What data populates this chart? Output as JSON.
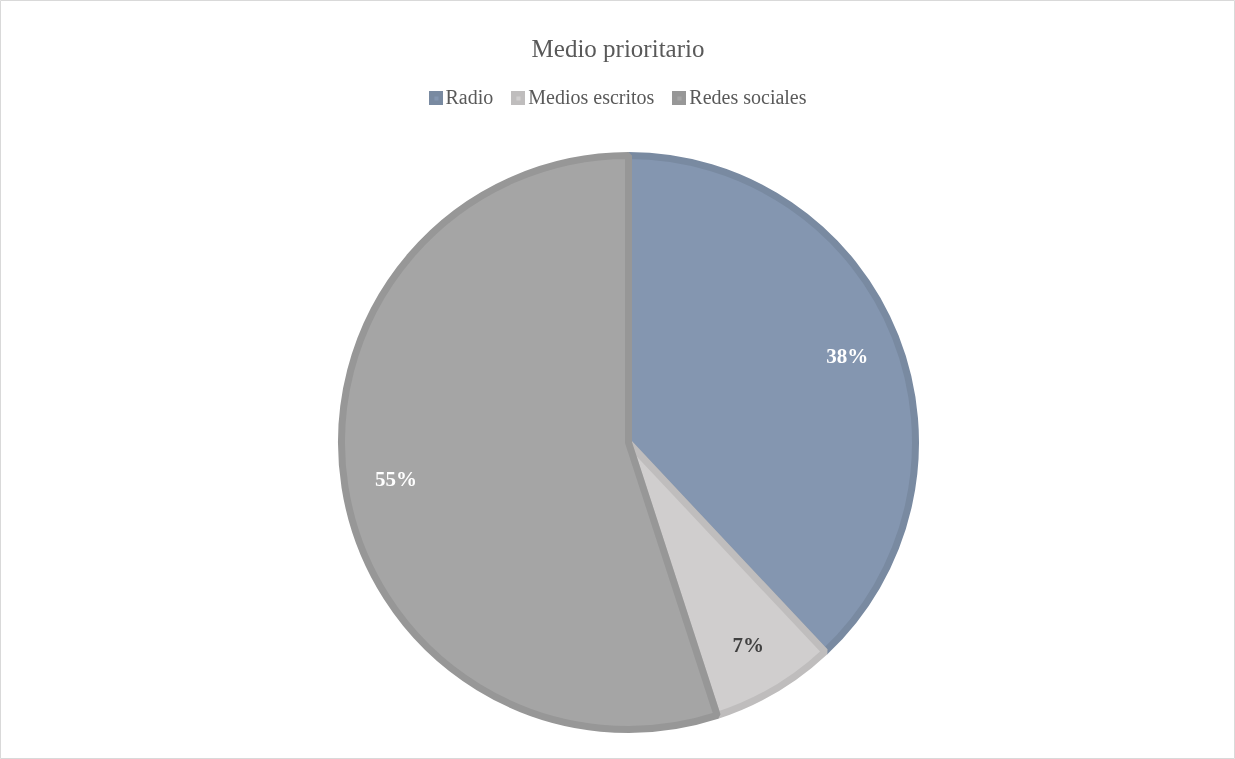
{
  "chart_data": {
    "type": "pie",
    "title": "Medio prioritario",
    "categories": [
      "Radio",
      "Medios escritos",
      "Redes sociales"
    ],
    "values": [
      38,
      7,
      55
    ],
    "colors": [
      "#8496b0",
      "#d0cece",
      "#a5a5a5"
    ],
    "value_labels": [
      "38%",
      "7%",
      "55%"
    ],
    "legend": "top"
  }
}
